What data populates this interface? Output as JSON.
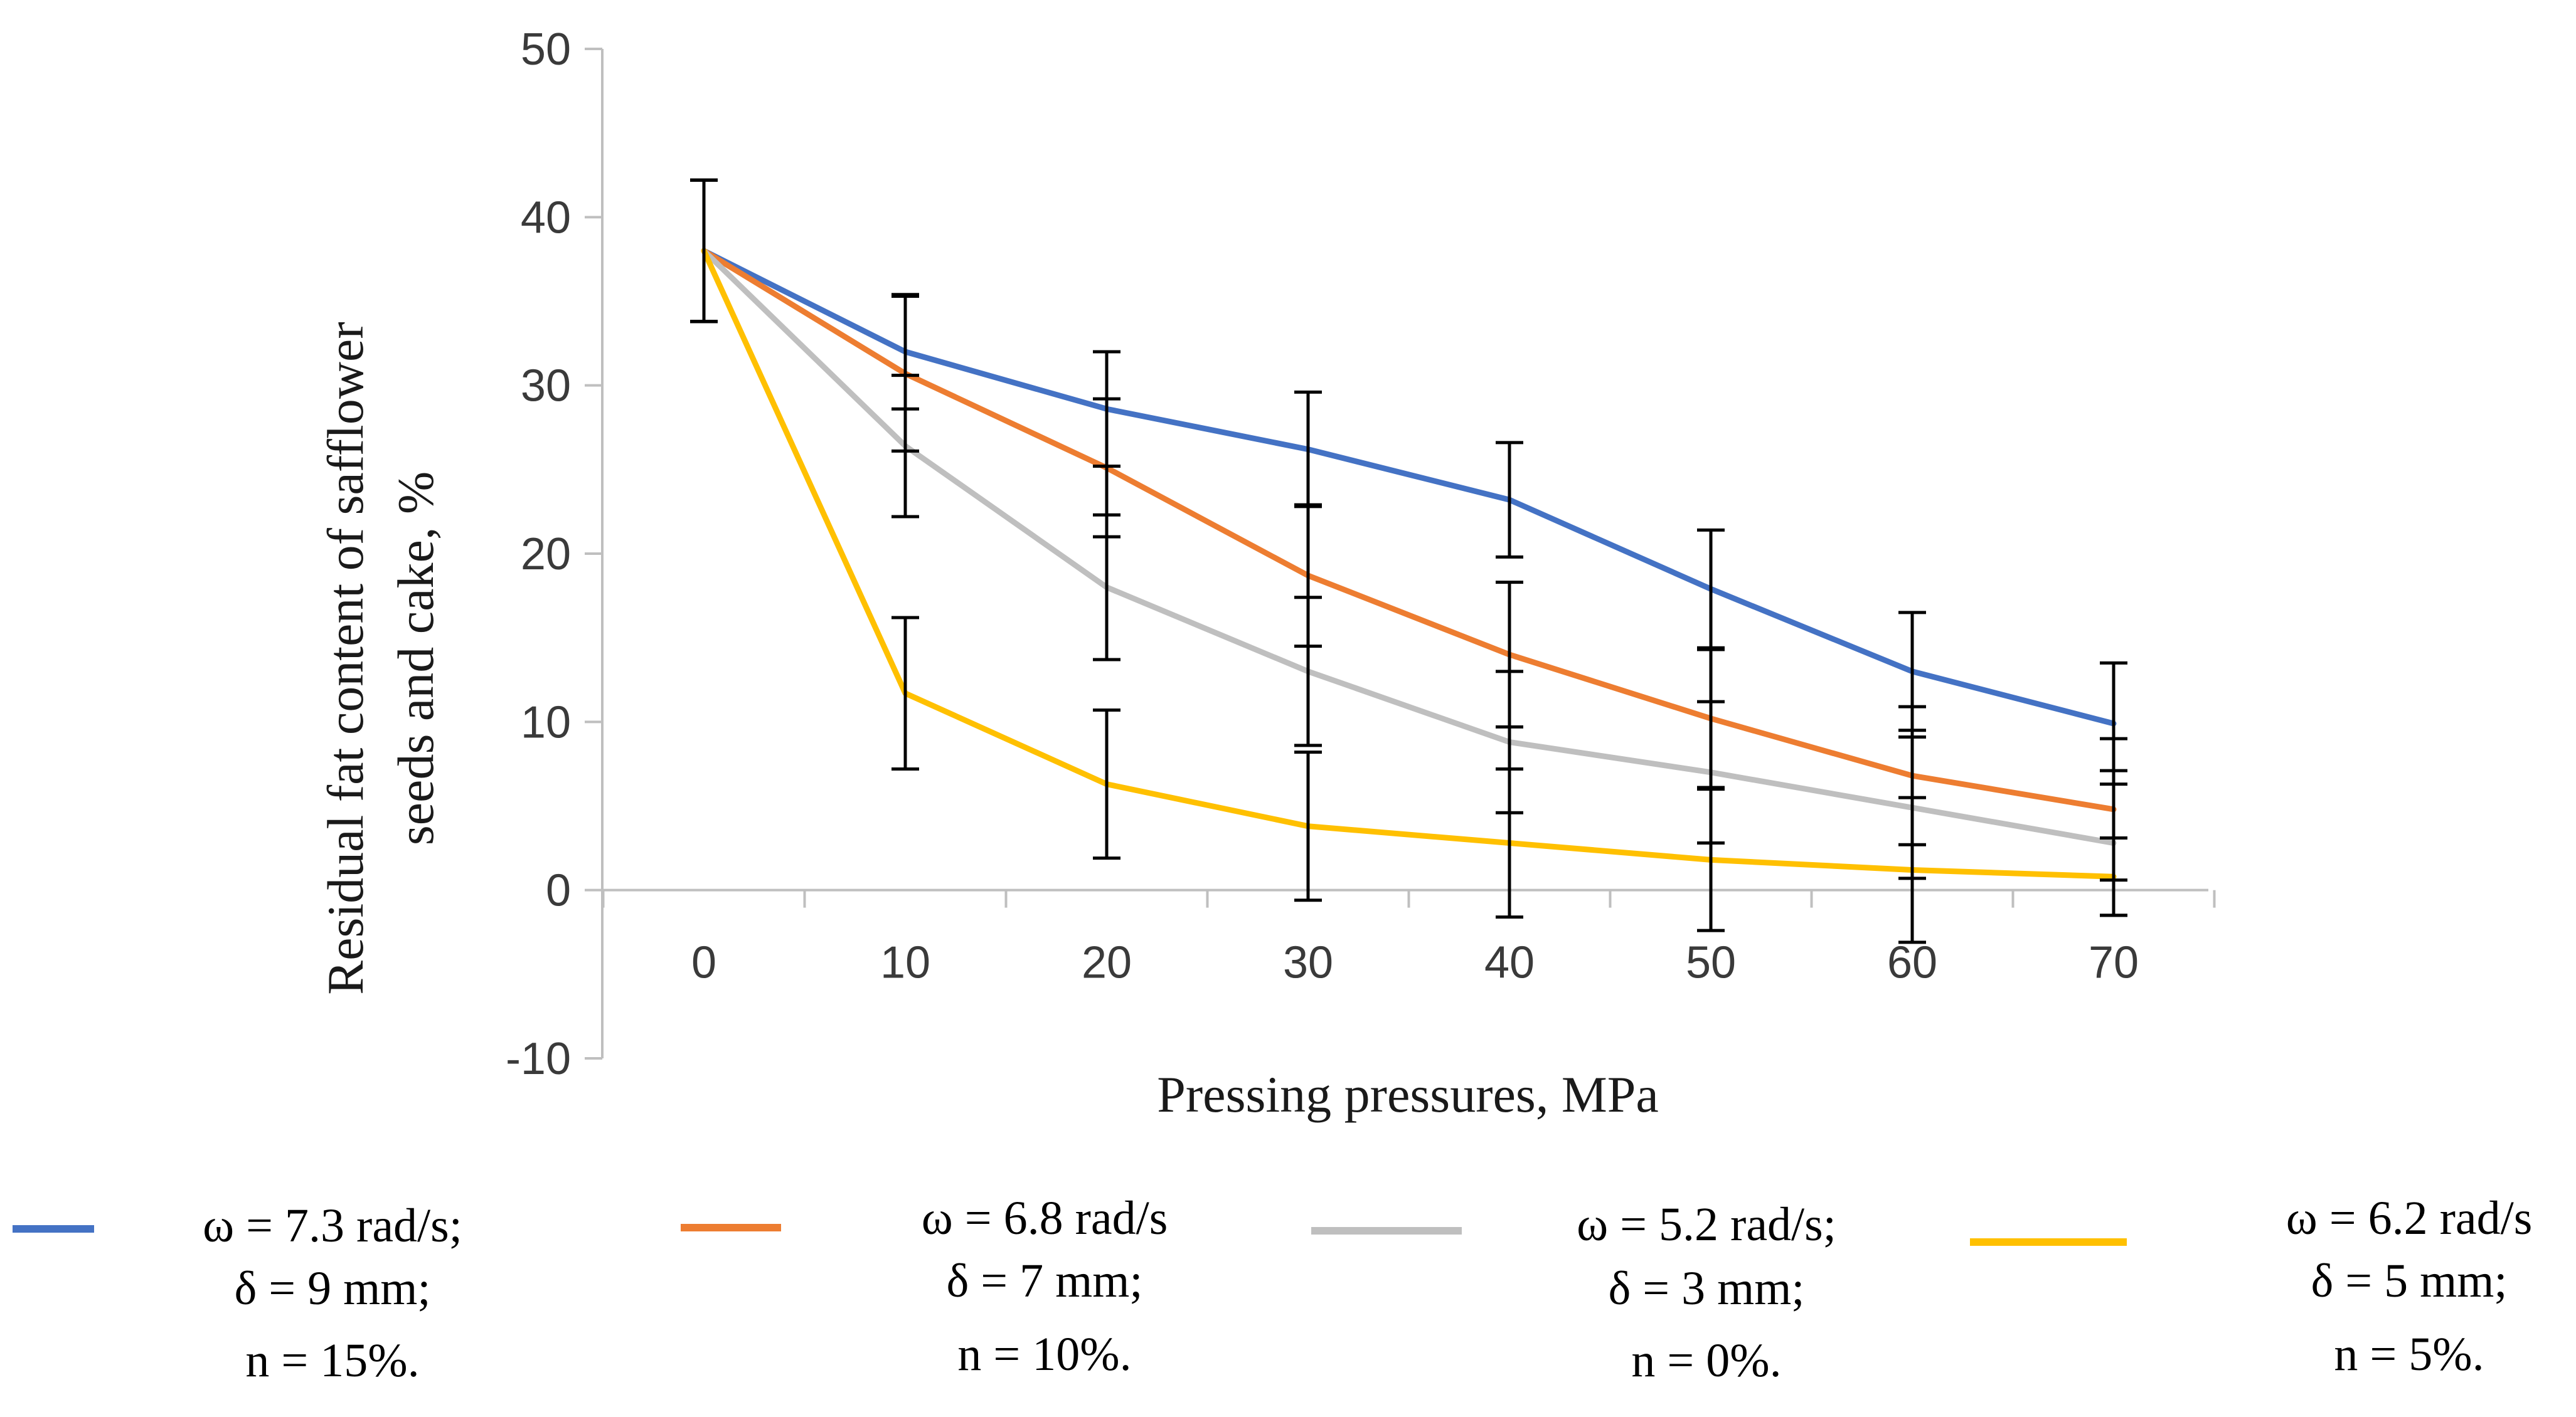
{
  "chart_data": {
    "type": "line",
    "title": "",
    "xlabel": "Pressing pressures, MPa",
    "ylabel_lines": [
      "Residual fat content of safflower",
      "seeds and cake, %"
    ],
    "x": [
      0,
      10,
      20,
      30,
      40,
      50,
      60,
      70
    ],
    "x_tick_labels": [
      "0",
      "10",
      "20",
      "30",
      "40",
      "50",
      "60",
      "70"
    ],
    "y_tick_labels": [
      "-10",
      "0",
      "10",
      "20",
      "30",
      "40",
      "50"
    ],
    "y_ticks": [
      -10,
      0,
      10,
      20,
      30,
      40,
      50
    ],
    "ylim": [
      -10,
      50
    ],
    "grid": false,
    "legend_position": "bottom",
    "series": [
      {
        "name": "ω = 7.3 rad/s; δ = 9 mm; n = 15%.",
        "color": "#4472C4",
        "legend_lines": [
          "ω = 7.3 rad/s;",
          "δ = 9 mm;",
          "n = 15%."
        ],
        "values": [
          38,
          32,
          28.6,
          26.2,
          23.2,
          17.9,
          13,
          9.9
        ],
        "errors": [
          4.2,
          3.4,
          3.4,
          3.4,
          3.4,
          3.5,
          3.5,
          3.6
        ]
      },
      {
        "name": "ω = 6.8 rad/s δ = 7 mm; n = 10%.",
        "color": "#ED7D31",
        "legend_lines": [
          "ω = 6.8 rad/s",
          "δ = 7 mm;",
          "n = 10%."
        ],
        "values": [
          38,
          30.7,
          25.1,
          18.7,
          14,
          10.2,
          6.8,
          4.8
        ],
        "errors": [
          4.2,
          4.6,
          4.1,
          4.2,
          4.3,
          4.1,
          4.1,
          4.2
        ]
      },
      {
        "name": "ω = 5.2 rad/s; δ = 3 mm; n = 0%.",
        "color": "#BFBFBF",
        "legend_lines": [
          "ω = 5.2 rad/s;",
          "δ = 3 mm;",
          "n = 0%."
        ],
        "values": [
          38,
          26.4,
          18,
          13,
          8.8,
          7,
          4.9,
          2.8
        ],
        "errors": [
          4.2,
          4.2,
          4.3,
          4.4,
          4.2,
          4.2,
          4.2,
          4.3
        ]
      },
      {
        "name": "ω = 6.2 rad/s δ = 5 mm; n = 5%.",
        "color": "#FFC000",
        "legend_lines": [
          "ω = 6.2 rad/s",
          "δ = 5 mm;",
          "n = 5%."
        ],
        "values": [
          38,
          11.7,
          6.3,
          3.8,
          2.8,
          1.8,
          1.2,
          0.8
        ],
        "errors": [
          4.2,
          4.5,
          4.4,
          4.4,
          4.4,
          4.2,
          4.3,
          2.3
        ]
      }
    ]
  }
}
